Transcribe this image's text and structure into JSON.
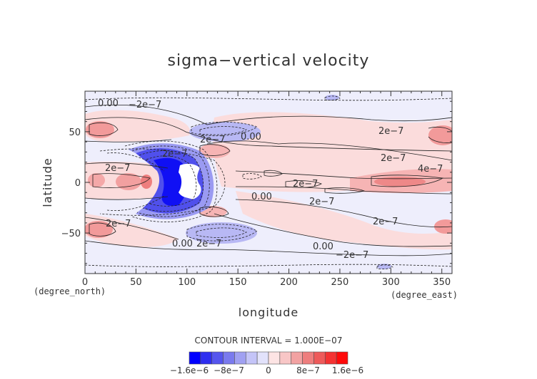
{
  "chart_data": {
    "type": "heatmap",
    "title": "sigma−vertical velocity",
    "xlabel": "longitude",
    "ylabel": "latitude",
    "x_unit": "(degree_east)",
    "y_unit": "(degree_north)",
    "xlim": [
      0,
      360
    ],
    "ylim": [
      -90,
      90
    ],
    "x_ticks": [
      "0",
      "50",
      "100",
      "150",
      "200",
      "250",
      "300",
      "350"
    ],
    "y_ticks": [
      "50",
      "0",
      "−50"
    ],
    "contour_interval_text": "CONTOUR INTERVAL = 1.000E−07",
    "colorbar": {
      "colors": [
        "#0000ff",
        "#2e2ef0",
        "#5555ee",
        "#7a7aee",
        "#a0a0f2",
        "#c4c4f8",
        "#e2e2fb",
        "#fde4e4",
        "#f8c6c6",
        "#f2a2a2",
        "#ee7e7e",
        "#ee5a5a",
        "#f43232",
        "#ff0a0a"
      ],
      "labels": [
        "−1.6e−6",
        "−8e−7",
        "0",
        "8e−7",
        "1.6e−6"
      ]
    },
    "contour_labels": [
      "0.00",
      "−2e−7",
      "2e−7",
      "2e−7",
      "2e−7",
      "4e−7",
      "0.00",
      "2e−7",
      "2e−7",
      "2e−7",
      "0.00",
      "2e−7",
      "2e−7",
      "2e−7",
      "0.00",
      "2e−7",
      "0.00",
      "−2e−7"
    ]
  }
}
